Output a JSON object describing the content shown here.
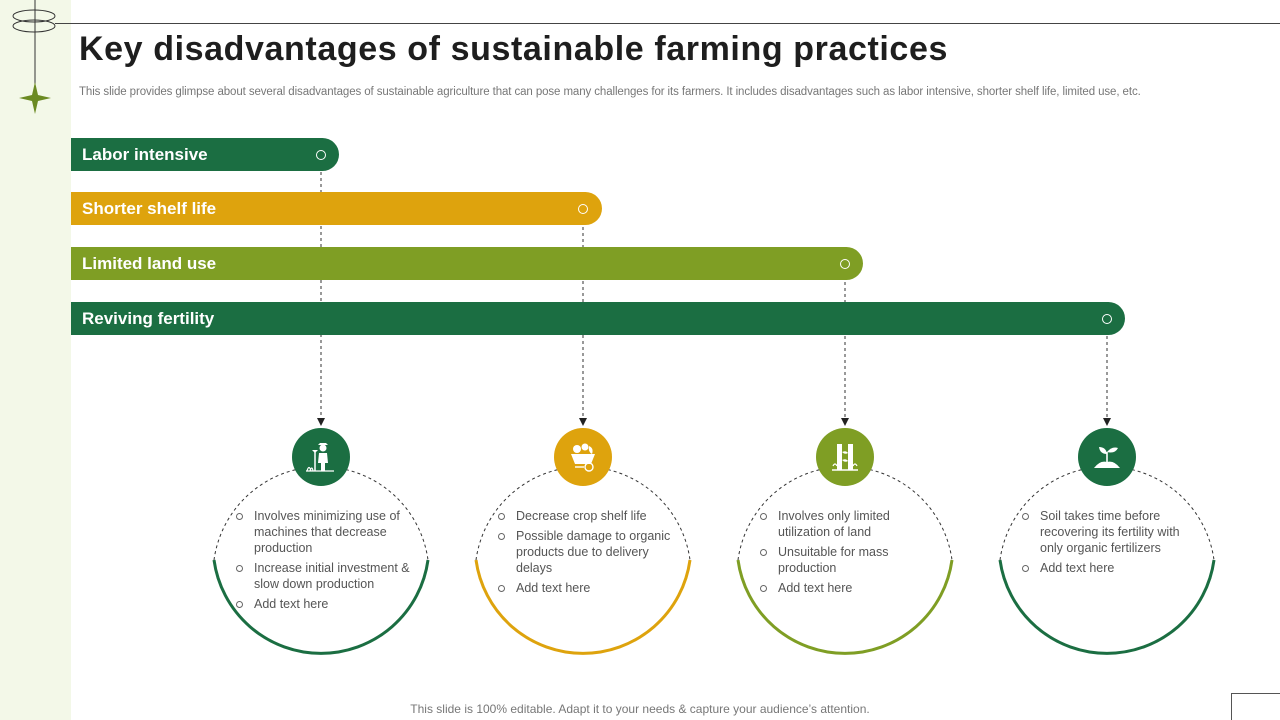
{
  "slide": {
    "title": "Key disadvantages of sustainable farming practices",
    "subtitle": "This slide provides glimpse about several disadvantages of sustainable agriculture that can pose many challenges for its farmers. It includes disadvantages such as labor intensive, shorter shelf life, limited use, etc.",
    "footer": "This slide is 100% editable. Adapt it to your needs & capture your audience’s attention."
  },
  "colors": {
    "dark_green": "#1b6e42",
    "mustard": "#dea30d",
    "olive": "#7f9e24",
    "side_strip": "#f3f8e8"
  },
  "bars": [
    {
      "label": "Labor intensive",
      "color": "#1b6e42"
    },
    {
      "label": "Shorter shelf life",
      "color": "#dea30d"
    },
    {
      "label": "Limited land use",
      "color": "#7f9e24"
    },
    {
      "label": "Reviving fertility",
      "color": "#1b6e42"
    }
  ],
  "cards": [
    {
      "icon": "farmer-icon",
      "color": "#1b6e42",
      "bullets": [
        "Involves  minimizing use of machines that decrease production",
        "Increase initial investment & slow down production",
        "Add text here"
      ]
    },
    {
      "icon": "produce-basket-icon",
      "color": "#dea30d",
      "bullets": [
        "Decrease crop shelf life",
        "Possible damage to organic products due to delivery delays",
        "Add text here"
      ]
    },
    {
      "icon": "plant-growth-icon",
      "color": "#7f9e24",
      "bullets": [
        "Involves  only limited utilization of land",
        "Unsuitable for mass production",
        "Add text here"
      ]
    },
    {
      "icon": "soil-sprout-icon",
      "color": "#1b6e42",
      "bullets": [
        "Soil takes time before recovering  its fertility with only organic fertilizers",
        "Add text here"
      ]
    }
  ]
}
